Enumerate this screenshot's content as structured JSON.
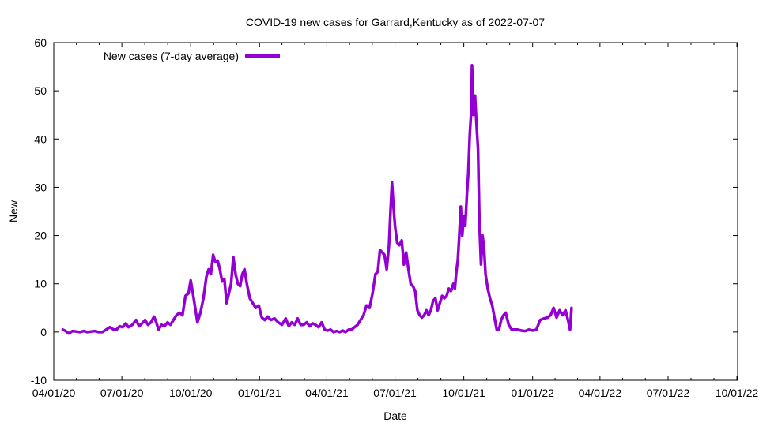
{
  "chart_data": {
    "type": "line",
    "title": "COVID-19 new cases for Garrard,Kentucky as of 2022-07-07",
    "xlabel": "Date",
    "ylabel": "New",
    "ylim": [
      -10,
      60
    ],
    "yticks": [
      -10,
      0,
      10,
      20,
      30,
      40,
      50,
      60
    ],
    "xlim_day": [
      0,
      914
    ],
    "xticks": [
      {
        "label": "04/01/20",
        "day": 0
      },
      {
        "label": "07/01/20",
        "day": 91
      },
      {
        "label": "10/01/20",
        "day": 183
      },
      {
        "label": "01/01/21",
        "day": 275
      },
      {
        "label": "04/01/21",
        "day": 365
      },
      {
        "label": "07/01/21",
        "day": 456
      },
      {
        "label": "10/01/21",
        "day": 548
      },
      {
        "label": "01/01/22",
        "day": 640
      },
      {
        "label": "04/01/22",
        "day": 730
      },
      {
        "label": "07/01/22",
        "day": 821
      },
      {
        "label": "10/01/22",
        "day": 913
      }
    ],
    "legend": {
      "position": "top-left",
      "label": "New cases (7-day average)"
    },
    "color": "#9400d3",
    "series": [
      {
        "name": "New cases (7-day average)",
        "points": [
          [
            12,
            0.5
          ],
          [
            16,
            0.2
          ],
          [
            20,
            -0.3
          ],
          [
            25,
            0.2
          ],
          [
            30,
            0.1
          ],
          [
            35,
            0.0
          ],
          [
            40,
            0.2
          ],
          [
            45,
            0.0
          ],
          [
            50,
            0.1
          ],
          [
            55,
            0.2
          ],
          [
            60,
            0.0
          ],
          [
            65,
            0.0
          ],
          [
            70,
            0.5
          ],
          [
            75,
            1.0
          ],
          [
            80,
            0.5
          ],
          [
            84,
            0.5
          ],
          [
            88,
            1.2
          ],
          [
            92,
            1.0
          ],
          [
            96,
            1.8
          ],
          [
            100,
            1.0
          ],
          [
            105,
            1.5
          ],
          [
            110,
            2.5
          ],
          [
            114,
            1.2
          ],
          [
            118,
            1.8
          ],
          [
            122,
            2.5
          ],
          [
            126,
            1.5
          ],
          [
            130,
            2.0
          ],
          [
            134,
            3.2
          ],
          [
            137,
            2.0
          ],
          [
            140,
            0.5
          ],
          [
            144,
            1.5
          ],
          [
            148,
            1.2
          ],
          [
            152,
            2.0
          ],
          [
            156,
            1.5
          ],
          [
            160,
            2.5
          ],
          [
            164,
            3.5
          ],
          [
            168,
            4.0
          ],
          [
            172,
            3.5
          ],
          [
            176,
            7.5
          ],
          [
            180,
            8.0
          ],
          [
            183,
            10.7
          ],
          [
            186,
            8.0
          ],
          [
            189,
            5.0
          ],
          [
            192,
            2.0
          ],
          [
            196,
            4.0
          ],
          [
            200,
            7.0
          ],
          [
            204,
            11.5
          ],
          [
            207,
            13.0
          ],
          [
            210,
            12.0
          ],
          [
            213,
            16.0
          ],
          [
            216,
            14.5
          ],
          [
            219,
            14.8
          ],
          [
            222,
            13.0
          ],
          [
            225,
            10.5
          ],
          [
            228,
            11.0
          ],
          [
            231,
            6.0
          ],
          [
            234,
            8.0
          ],
          [
            237,
            10.0
          ],
          [
            240,
            15.5
          ],
          [
            243,
            12.0
          ],
          [
            246,
            10.0
          ],
          [
            249,
            9.5
          ],
          [
            252,
            12.0
          ],
          [
            255,
            13.0
          ],
          [
            258,
            10.0
          ],
          [
            262,
            7.0
          ],
          [
            266,
            6.0
          ],
          [
            270,
            5.0
          ],
          [
            274,
            5.5
          ],
          [
            278,
            3.0
          ],
          [
            282,
            2.5
          ],
          [
            286,
            3.2
          ],
          [
            290,
            2.5
          ],
          [
            295,
            2.8
          ],
          [
            300,
            2.0
          ],
          [
            305,
            1.5
          ],
          [
            310,
            2.8
          ],
          [
            314,
            1.2
          ],
          [
            318,
            2.0
          ],
          [
            322,
            1.5
          ],
          [
            326,
            2.8
          ],
          [
            330,
            1.5
          ],
          [
            334,
            1.5
          ],
          [
            338,
            2.0
          ],
          [
            342,
            1.2
          ],
          [
            346,
            1.8
          ],
          [
            350,
            1.5
          ],
          [
            354,
            1.0
          ],
          [
            358,
            2.0
          ],
          [
            362,
            0.5
          ],
          [
            366,
            0.3
          ],
          [
            370,
            0.5
          ],
          [
            374,
            0.0
          ],
          [
            378,
            0.2
          ],
          [
            382,
            0.0
          ],
          [
            386,
            0.3
          ],
          [
            390,
            0.0
          ],
          [
            394,
            0.5
          ],
          [
            398,
            0.5
          ],
          [
            402,
            1.0
          ],
          [
            406,
            1.5
          ],
          [
            410,
            2.5
          ],
          [
            414,
            3.5
          ],
          [
            418,
            5.5
          ],
          [
            422,
            5.0
          ],
          [
            426,
            8.0
          ],
          [
            430,
            12.0
          ],
          [
            433,
            12.5
          ],
          [
            436,
            17.0
          ],
          [
            439,
            16.5
          ],
          [
            442,
            16.0
          ],
          [
            445,
            13.0
          ],
          [
            448,
            18.0
          ],
          [
            450,
            25.0
          ],
          [
            452,
            31.0
          ],
          [
            454,
            26.0
          ],
          [
            456,
            22.0
          ],
          [
            459,
            18.5
          ],
          [
            462,
            18.0
          ],
          [
            465,
            19.0
          ],
          [
            468,
            14.0
          ],
          [
            471,
            16.5
          ],
          [
            474,
            13.0
          ],
          [
            477,
            10.0
          ],
          [
            480,
            9.5
          ],
          [
            483,
            8.5
          ],
          [
            486,
            4.5
          ],
          [
            489,
            3.5
          ],
          [
            492,
            3.0
          ],
          [
            495,
            3.5
          ],
          [
            498,
            4.5
          ],
          [
            501,
            3.5
          ],
          [
            504,
            4.5
          ],
          [
            507,
            6.5
          ],
          [
            510,
            7.0
          ],
          [
            513,
            4.5
          ],
          [
            516,
            6.0
          ],
          [
            519,
            7.5
          ],
          [
            522,
            7.0
          ],
          [
            525,
            7.5
          ],
          [
            528,
            9.0
          ],
          [
            531,
            8.5
          ],
          [
            534,
            10.0
          ],
          [
            536,
            9.0
          ],
          [
            538,
            12.5
          ],
          [
            540,
            15.0
          ],
          [
            542,
            20.0
          ],
          [
            544,
            26.0
          ],
          [
            546,
            20.0
          ],
          [
            548,
            24.0
          ],
          [
            550,
            22.0
          ],
          [
            552,
            28.0
          ],
          [
            554,
            33.0
          ],
          [
            556,
            41.0
          ],
          [
            558,
            46.0
          ],
          [
            559,
            55.3
          ],
          [
            561,
            45.0
          ],
          [
            563,
            49.0
          ],
          [
            565,
            43.0
          ],
          [
            567,
            38.0
          ],
          [
            569,
            22.0
          ],
          [
            571,
            14.0
          ],
          [
            573,
            20.0
          ],
          [
            575,
            17.5
          ],
          [
            577,
            12.0
          ],
          [
            580,
            9.0
          ],
          [
            583,
            7.0
          ],
          [
            586,
            5.5
          ],
          [
            589,
            3.0
          ],
          [
            592,
            0.5
          ],
          [
            595,
            0.5
          ],
          [
            598,
            2.5
          ],
          [
            601,
            3.5
          ],
          [
            604,
            4.0
          ],
          [
            608,
            1.5
          ],
          [
            612,
            0.5
          ],
          [
            616,
            0.5
          ],
          [
            620,
            0.5
          ],
          [
            625,
            0.3
          ],
          [
            630,
            0.2
          ],
          [
            635,
            0.5
          ],
          [
            640,
            0.3
          ],
          [
            645,
            0.5
          ],
          [
            650,
            2.5
          ],
          [
            655,
            2.8
          ],
          [
            660,
            3.0
          ],
          [
            664,
            3.5
          ],
          [
            668,
            5.0
          ],
          [
            672,
            3.0
          ],
          [
            676,
            4.5
          ],
          [
            680,
            3.5
          ],
          [
            684,
            4.5
          ],
          [
            688,
            2.0
          ],
          [
            690,
            0.5
          ],
          [
            692,
            5.0
          ]
        ]
      }
    ]
  }
}
